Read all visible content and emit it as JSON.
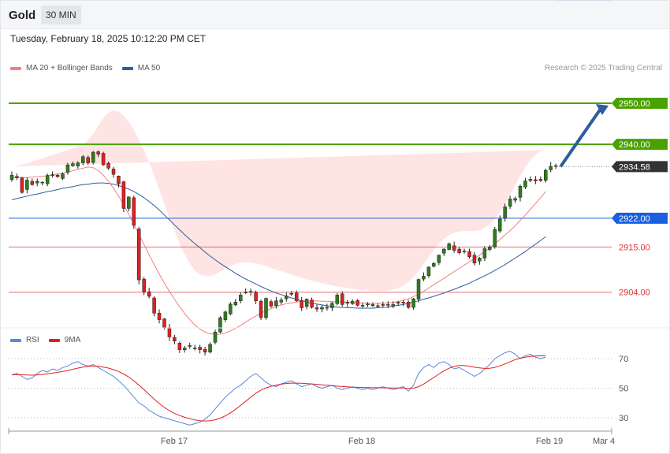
{
  "header": {
    "symbol": "Gold",
    "timeframe": "30 MIN"
  },
  "datetime": "Tuesday, February 18, 2025 10:12:20 PM CET",
  "legend": [
    {
      "label": "MA 20 + Bollinger Bands",
      "color": "#f08080"
    },
    {
      "label": "MA 50",
      "color": "#2c5d9c"
    }
  ],
  "credit": "Research © 2025 Trading Central",
  "rsi_legend": [
    {
      "label": "RSI",
      "color": "#5b87d6"
    },
    {
      "label": "9MA",
      "color": "#e02020"
    }
  ],
  "chart_data": [
    {
      "type": "line",
      "title": "",
      "subtype": "candlestick",
      "ylim": [
        2895.5,
        2955
      ],
      "levels": [
        {
          "value": 2950.0,
          "label": "2950.00",
          "color": "#4aa200",
          "style": "tag"
        },
        {
          "value": 2940.0,
          "label": "2940.00",
          "color": "#4aa200",
          "style": "tag"
        },
        {
          "value": 2934.58,
          "label": "2934.58",
          "color": "#333333",
          "style": "last-price"
        },
        {
          "value": 2922.0,
          "label": "2922.00",
          "color": "#1a5fe0",
          "style": "tag"
        },
        {
          "value": 2915.0,
          "label": "2915.00",
          "color": "#e03030",
          "style": "text"
        },
        {
          "value": 2904.0,
          "label": "2904.00",
          "color": "#e03030",
          "style": "text"
        }
      ],
      "x_ticks": [
        "Feb 17",
        "Feb 18",
        "Feb 19",
        "Mar 4"
      ],
      "candles_close": [
        2932.5,
        2931.9,
        2928.3,
        2931.3,
        2930.2,
        2931.0,
        2930.8,
        2932.4,
        2932.5,
        2932.1,
        2932.8,
        2935.0,
        2935.3,
        2935.5,
        2937.0,
        2935.5,
        2938.1,
        2937.6,
        2935.0,
        2934.2,
        2932.7,
        2930.4,
        2924.4,
        2927.2,
        2920.3,
        2907.0,
        2904.1,
        2903.0,
        2898.9,
        2897.3,
        2895.4,
        2893.1,
        2892.1,
        2890.0,
        2890.4,
        2890.8,
        2890.4,
        2890.0,
        2889.4,
        2891.3,
        2894.3,
        2897.8,
        2899.2,
        2901.1,
        2901.6,
        2903.3,
        2904.0,
        2904.1,
        2901.9,
        2897.8,
        2902.5,
        2900.6,
        2901.9,
        2902.1,
        2903.1,
        2903.7,
        2901.9,
        2900.2,
        2902.3,
        2900.3,
        2899.9,
        2900.3,
        2900.1,
        2901.3,
        2903.3,
        2901.0,
        2901.5,
        2901.8,
        2900.8,
        2900.7,
        2901.1,
        2900.7,
        2900.7,
        2900.8,
        2900.9,
        2901.0,
        2901.5,
        2901.4,
        2900.3,
        2902.4,
        2907.1,
        2907.9,
        2910.1,
        2911.0,
        2913.0,
        2914.5,
        2915.8,
        2914.2,
        2913.6,
        2914.0,
        2912.6,
        2911.1,
        2912.3,
        2914.6,
        2915.0,
        2919.3,
        2921.8,
        2924.8,
        2926.7,
        2926.8,
        2929.8,
        2931.1,
        2931.5,
        2931.1,
        2931.2,
        2933.7,
        2934.6,
        2934.6
      ],
      "candles_open": [
        2931.4,
        2932.2,
        2931.8,
        2929.0,
        2931.0,
        2930.6,
        2930.6,
        2930.4,
        2932.6,
        2932.5,
        2931.7,
        2933.2,
        2934.8,
        2934.7,
        2935.5,
        2936.8,
        2935.6,
        2938.2,
        2937.8,
        2935.4,
        2934.0,
        2932.3,
        2930.9,
        2924.4,
        2927.0,
        2919.4,
        2907.2,
        2904.1,
        2902.6,
        2898.9,
        2897.5,
        2895.4,
        2893.0,
        2891.6,
        2890.0,
        2891.0,
        2890.4,
        2890.6,
        2890.1,
        2889.4,
        2891.8,
        2894.3,
        2897.3,
        2898.7,
        2900.9,
        2901.9,
        2903.9,
        2904.2,
        2904.0,
        2901.8,
        2897.8,
        2901.7,
        2900.7,
        2901.6,
        2902.4,
        2903.5,
        2903.8,
        2902.0,
        2900.5,
        2902.1,
        2900.2,
        2899.9,
        2900.3,
        2900.2,
        2901.2,
        2903.6,
        2901.3,
        2901.2,
        2902.0,
        2900.8,
        2901.0,
        2901.0,
        2900.6,
        2901.0,
        2901.0,
        2900.6,
        2901.4,
        2901.6,
        2901.6,
        2900.3,
        2902.3,
        2907.2,
        2908.0,
        2910.3,
        2911.2,
        2913.5,
        2914.4,
        2915.3,
        2914.5,
        2913.8,
        2913.9,
        2913.0,
        2911.6,
        2912.3,
        2914.4,
        2915.1,
        2918.9,
        2922.1,
        2924.9,
        2926.4,
        2927.1,
        2929.6,
        2931.2,
        2931.4,
        2931.5,
        2931.2,
        2933.8,
        2934.8
      ],
      "candles_high": [
        2933.4,
        2932.9,
        2932.1,
        2931.9,
        2931.7,
        2931.7,
        2931.0,
        2932.9,
        2933.4,
        2932.8,
        2933.2,
        2935.5,
        2935.8,
        2935.9,
        2937.4,
        2937.3,
        2938.4,
        2938.5,
        2938.2,
        2935.8,
        2934.5,
        2932.4,
        2931.1,
        2927.3,
        2927.5,
        2919.9,
        2907.7,
        2905.1,
        2903.0,
        2899.8,
        2897.7,
        2896.3,
        2893.6,
        2892.0,
        2890.9,
        2891.7,
        2891.2,
        2891.2,
        2890.7,
        2891.8,
        2894.9,
        2898.2,
        2899.5,
        2901.6,
        2902.4,
        2904.0,
        2904.9,
        2904.9,
        2904.4,
        2902.2,
        2902.7,
        2902.2,
        2902.8,
        2902.7,
        2903.9,
        2904.3,
        2904.4,
        2902.8,
        2902.5,
        2902.7,
        2901.0,
        2900.9,
        2901.2,
        2901.7,
        2903.8,
        2904.2,
        2902.1,
        2902.3,
        2902.3,
        2901.4,
        2901.6,
        2901.5,
        2901.3,
        2901.7,
        2901.8,
        2901.8,
        2901.9,
        2902.1,
        2902.1,
        2902.6,
        2907.3,
        2908.8,
        2910.3,
        2911.4,
        2913.2,
        2914.7,
        2916.1,
        2916.3,
        2915.0,
        2914.6,
        2914.6,
        2913.8,
        2912.6,
        2915.2,
        2915.5,
        2919.9,
        2922.7,
        2925.6,
        2927.5,
        2927.3,
        2930.2,
        2931.8,
        2932.2,
        2932.3,
        2932.2,
        2934.1,
        2935.7,
        2935.3
      ],
      "candles_low": [
        2930.9,
        2931.3,
        2928.0,
        2928.1,
        2929.9,
        2929.8,
        2930.0,
        2929.8,
        2931.9,
        2931.9,
        2931.3,
        2932.6,
        2934.5,
        2934.1,
        2934.9,
        2935.0,
        2935.1,
        2936.9,
        2934.8,
        2933.8,
        2931.9,
        2929.5,
        2923.5,
        2923.7,
        2919.4,
        2905.9,
        2903.3,
        2902.5,
        2898.1,
        2896.4,
        2894.9,
        2892.1,
        2891.3,
        2889.2,
        2889.3,
        2890.2,
        2889.8,
        2889.1,
        2888.6,
        2889.1,
        2891.3,
        2894.0,
        2896.7,
        2898.4,
        2900.6,
        2901.3,
        2903.6,
        2903.1,
        2901.1,
        2897.2,
        2897.3,
        2900.2,
        2900.0,
        2901.0,
        2901.7,
        2903.1,
        2901.6,
        2899.4,
        2899.8,
        2900.0,
        2899.2,
        2899.1,
        2899.5,
        2899.4,
        2900.8,
        2900.5,
        2900.4,
        2900.9,
        2900.5,
        2900.1,
        2900.4,
        2900.4,
        2900.2,
        2900.2,
        2900.1,
        2900.1,
        2900.7,
        2900.6,
        2899.9,
        2899.7,
        2901.5,
        2906.7,
        2907.5,
        2910.0,
        2910.6,
        2912.8,
        2914.2,
        2913.6,
        2913.2,
        2913.4,
        2912.2,
        2910.5,
        2910.7,
        2911.6,
        2914.0,
        2914.6,
        2918.4,
        2921.2,
        2924.3,
        2925.7,
        2926.1,
        2929.1,
        2930.8,
        2930.3,
        2930.8,
        2930.7,
        2933.2,
        2934.0
      ],
      "ma20": [
        2931.8,
        2931.9,
        2931.9,
        2931.9,
        2932.0,
        2932.1,
        2932.2,
        2932.4,
        2932.6,
        2932.8,
        2933.0,
        2933.3,
        2933.6,
        2933.9,
        2934.2,
        2934.5,
        2934.3,
        2933.6,
        2932.5,
        2931.0,
        2929.3,
        2927.4,
        2925.3,
        2923.0,
        2920.6,
        2918.1,
        2915.6,
        2913.1,
        2910.7,
        2908.4,
        2906.2,
        2904.2,
        2902.3,
        2900.5,
        2898.8,
        2897.3,
        2896.0,
        2895.0,
        2894.3,
        2893.9,
        2893.7,
        2893.8,
        2894.1,
        2894.6,
        2895.2,
        2895.9,
        2896.7,
        2897.5,
        2898.2,
        2898.9,
        2899.5,
        2900.0,
        2900.5,
        2900.9,
        2901.2,
        2901.4,
        2901.6,
        2901.8,
        2901.9,
        2901.9,
        2901.9,
        2901.8,
        2901.8,
        2901.7,
        2901.7,
        2901.6,
        2901.6,
        2901.5,
        2901.4,
        2901.4,
        2901.3,
        2901.3,
        2901.3,
        2901.3,
        2901.4,
        2901.5,
        2901.7,
        2902.0,
        2902.4,
        2902.9,
        2903.5,
        2904.2,
        2905.0,
        2905.8,
        2906.6,
        2907.4,
        2908.2,
        2909.0,
        2909.8,
        2910.6,
        2911.4,
        2912.2,
        2913.0,
        2913.9,
        2914.8,
        2915.8,
        2916.8,
        2917.9,
        2919.0,
        2920.2,
        2921.5,
        2922.8,
        2924.2,
        2925.6,
        2927.0,
        2928.5
      ],
      "ma50": [
        2926.5,
        2926.8,
        2927.1,
        2927.4,
        2927.7,
        2927.9,
        2928.2,
        2928.5,
        2928.7,
        2929.0,
        2929.3,
        2929.5,
        2929.7,
        2930.0,
        2930.2,
        2930.3,
        2930.5,
        2930.6,
        2930.6,
        2930.5,
        2930.3,
        2930.0,
        2929.6,
        2929.1,
        2928.5,
        2927.8,
        2927.0,
        2926.1,
        2925.1,
        2924.0,
        2922.8,
        2921.6,
        2920.4,
        2919.2,
        2918.0,
        2916.9,
        2915.8,
        2914.8,
        2913.8,
        2912.8,
        2911.9,
        2911.0,
        2910.2,
        2909.4,
        2908.6,
        2907.9,
        2907.2,
        2906.6,
        2906.0,
        2905.4,
        2904.8,
        2904.3,
        2903.8,
        2903.4,
        2903.0,
        2902.6,
        2902.3,
        2901.9,
        2901.6,
        2901.3,
        2901.1,
        2900.9,
        2900.7,
        2900.5,
        2900.4,
        2900.3,
        2900.2,
        2900.2,
        2900.1,
        2900.1,
        2900.1,
        2900.1,
        2900.2,
        2900.3,
        2900.4,
        2900.6,
        2900.8,
        2901.0,
        2901.3,
        2901.6,
        2901.9,
        2902.3,
        2902.6,
        2903.0,
        2903.4,
        2903.8,
        2904.3,
        2904.7,
        2905.2,
        2905.7,
        2906.2,
        2906.8,
        2907.4,
        2908.0,
        2908.6,
        2909.3,
        2910.0,
        2910.7,
        2911.5,
        2912.3,
        2913.1,
        2913.9,
        2914.8,
        2915.7,
        2916.6,
        2917.5
      ],
      "bb_upper": [
        2934.6,
        2934.8,
        2935.1,
        2935.4,
        2935.8,
        2936.2,
        2936.6,
        2937.0,
        2937.4,
        2937.8,
        2938.2,
        2938.6,
        2939.0,
        2939.5,
        2940.1,
        2941.0,
        2942.5,
        2944.5,
        2946.5,
        2947.8,
        2948.3,
        2948.0,
        2947.0,
        2945.5,
        2943.5,
        2941.2,
        2938.6,
        2935.6,
        2932.3,
        2928.9,
        2925.5,
        2922.1,
        2918.9,
        2915.9,
        2913.2,
        2910.9,
        2909.3,
        2908.3,
        2907.9,
        2907.9,
        2908.3,
        2909.0,
        2909.7,
        2910.4,
        2910.9,
        2911.2,
        2911.3,
        2911.2,
        2911.0,
        2910.7,
        2910.3,
        2909.9,
        2909.5,
        2909.1,
        2908.7,
        2908.3,
        2907.9,
        2907.5,
        2907.1,
        2906.8,
        2906.5,
        2906.2,
        2905.9,
        2905.6,
        2905.4,
        2905.2,
        2905.0,
        2904.8,
        2904.6,
        2904.5,
        2904.4,
        2904.3,
        2904.3,
        2904.3,
        2904.4,
        2904.6,
        2905.0,
        2905.6,
        2906.4,
        2907.6,
        2909.1,
        2910.8,
        2912.6,
        2914.3,
        2915.8,
        2917.0,
        2917.9,
        2918.5,
        2918.8,
        2918.9,
        2918.9,
        2918.9,
        2919.1,
        2919.6,
        2920.5,
        2921.8,
        2923.5,
        2925.5,
        2927.7,
        2930.0,
        2932.3,
        2934.4,
        2936.2,
        2937.5,
        2938.3,
        2938.6
      ],
      "bb_lower": [
        2928.9,
        2929.0,
        2928.8,
        2928.5,
        2928.2,
        2928.0,
        2927.8,
        2927.7,
        2927.8,
        2927.8,
        2927.9,
        2928.0,
        2928.2,
        2928.3,
        2928.3,
        2928.0,
        2926.0,
        2922.7,
        2918.4,
        2914.1,
        2910.2,
        2906.8,
        2903.6,
        2900.5,
        2897.7,
        2895.0,
        2892.6,
        2890.5,
        2888.9,
        2887.8,
        2887.2,
        2887.1,
        2887.3,
        2887.7,
        2888.2,
        2888.7,
        2889.2,
        2889.6,
        2889.9,
        2890.1,
        2890.3,
        2890.8,
        2891.6,
        2892.6,
        2893.6,
        2894.4,
        2895.2,
        2895.8,
        2896.4,
        2896.9,
        2897.4,
        2897.8,
        2898.1,
        2898.4,
        2898.6,
        2898.8,
        2898.9,
        2899.0,
        2899.1,
        2899.1,
        2899.1,
        2899.1,
        2899.2,
        2899.2,
        2899.3,
        2899.3,
        2899.3,
        2899.3,
        2899.2,
        2899.1,
        2899.0,
        2898.8,
        2898.6,
        2898.4,
        2898.1,
        2897.9,
        2897.6,
        2897.4,
        2897.2,
        2897.1,
        2897.1,
        2897.2,
        2897.5,
        2897.9,
        2898.5,
        2899.3,
        2900.3,
        2901.4,
        2902.5,
        2903.5,
        2904.4,
        2905.0,
        2905.4,
        2905.5,
        2905.6,
        2905.8,
        2906.2,
        2906.7,
        2907.3,
        2908.0,
        2908.8,
        2909.6,
        2910.4,
        2911.2,
        2912.0,
        2912.8
      ],
      "projection": {
        "from": 2934.58,
        "to": 2950.0
      }
    },
    {
      "type": "line",
      "title": "",
      "ylim": [
        22,
        78
      ],
      "y_ticks": [
        30,
        50,
        70
      ],
      "series": [
        {
          "name": "RSI",
          "color": "#5b87d6",
          "values": [
            59.0,
            60.0,
            58.0,
            56.0,
            57.0,
            60.0,
            62.0,
            61.0,
            63.0,
            62.0,
            64.0,
            65.0,
            67.0,
            68.0,
            66.0,
            65.0,
            66.0,
            64.0,
            62.0,
            60.0,
            58.0,
            55.0,
            52.0,
            48.0,
            44.0,
            40.0,
            38.0,
            35.0,
            33.0,
            31.0,
            30.0,
            29.0,
            28.0,
            27.0,
            26.0,
            25.0,
            26.0,
            27.0,
            29.0,
            32.0,
            36.0,
            40.0,
            44.0,
            47.0,
            50.0,
            52.0,
            55.0,
            58.0,
            60.0,
            57.0,
            54.0,
            52.0,
            51.0,
            53.0,
            54.0,
            55.0,
            53.0,
            51.0,
            52.0,
            53.0,
            51.0,
            50.0,
            51.0,
            52.0,
            50.0,
            49.0,
            50.0,
            51.0,
            50.0,
            49.0,
            50.0,
            49.0,
            50.0,
            51.0,
            50.0,
            49.0,
            50.0,
            51.0,
            48.0,
            52.0,
            60.0,
            64.0,
            66.0,
            64.0,
            67.0,
            68.0,
            66.0,
            63.0,
            64.0,
            62.0,
            60.0,
            58.0,
            60.0,
            63.0,
            66.0,
            70.0,
            72.0,
            74.0,
            75.0,
            73.0,
            70.0,
            72.0,
            73.0,
            71.0,
            70.0,
            71.0
          ]
        },
        {
          "name": "9MA",
          "color": "#e02020",
          "values": [
            59.0,
            59.2,
            59.1,
            58.9,
            58.8,
            59.0,
            59.3,
            59.7,
            60.2,
            60.7,
            61.3,
            62.0,
            62.8,
            63.6,
            64.3,
            64.8,
            65.0,
            64.8,
            64.3,
            63.6,
            62.6,
            61.3,
            59.6,
            57.5,
            55.0,
            52.1,
            49.0,
            45.8,
            42.6,
            39.6,
            37.0,
            34.8,
            33.0,
            31.5,
            30.3,
            29.3,
            28.5,
            28.0,
            27.8,
            28.0,
            28.6,
            29.7,
            31.3,
            33.3,
            35.7,
            38.3,
            41.1,
            43.9,
            46.6,
            48.7,
            50.2,
            51.3,
            52.1,
            52.7,
            53.2,
            53.4,
            53.4,
            53.3,
            53.1,
            52.9,
            52.6,
            52.3,
            52.0,
            51.7,
            51.4,
            51.1,
            50.9,
            50.7,
            50.6,
            50.5,
            50.4,
            50.3,
            50.3,
            50.2,
            50.2,
            50.1,
            50.1,
            50.1,
            49.9,
            50.0,
            51.0,
            52.8,
            55.0,
            57.2,
            59.6,
            61.8,
            63.5,
            64.7,
            65.3,
            65.3,
            64.9,
            64.2,
            63.7,
            63.4,
            63.5,
            64.1,
            65.1,
            66.4,
            67.9,
            69.3,
            70.3,
            71.0,
            71.5,
            71.8,
            71.9,
            71.8
          ]
        }
      ]
    }
  ]
}
